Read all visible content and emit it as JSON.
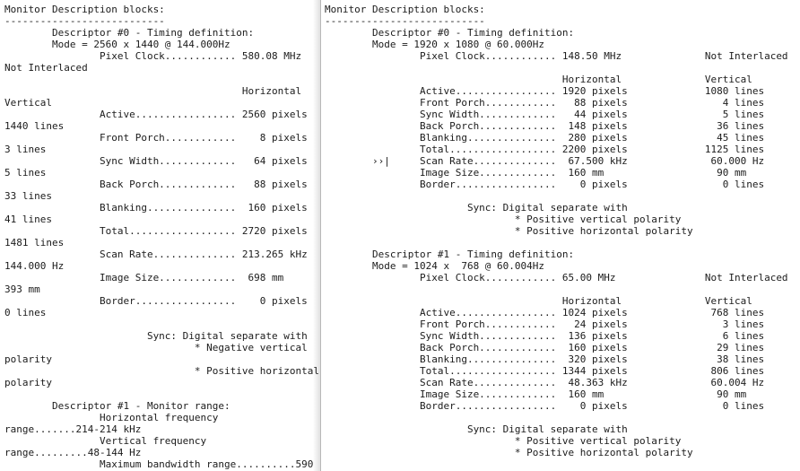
{
  "left_pane": {
    "lines": [
      "Monitor Description blocks:",
      "---------------------------",
      "        Descriptor #0 - Timing definition:",
      "        Mode = 2560 x 1440 @ 144.000Hz",
      "                Pixel Clock............ 580.08 MHz",
      "Not Interlaced",
      "",
      "                                        Horizontal",
      "Vertical",
      "                Active................. 2560 pixels",
      "1440 lines",
      "                Front Porch............    8 pixels",
      "3 lines",
      "                Sync Width.............   64 pixels",
      "5 lines",
      "                Back Porch.............   88 pixels",
      "33 lines",
      "                Blanking...............  160 pixels",
      "41 lines",
      "                Total.................. 2720 pixels",
      "1481 lines",
      "                Scan Rate.............. 213.265 kHz",
      "144.000 Hz",
      "                Image Size.............  698 mm",
      "393 mm",
      "                Border.................    0 pixels",
      "0 lines",
      "",
      "                        Sync: Digital separate with",
      "                                * Negative vertical",
      "polarity",
      "                                * Positive horizontal",
      "polarity",
      "",
      "        Descriptor #1 - Monitor range:",
      "                Horizontal frequency",
      "range.......214-214 kHz",
      "                Vertical frequency",
      "range.........48-144 Hz",
      "                Maximum bandwidth range..........590"
    ]
  },
  "right_pane": {
    "lines": [
      "Monitor Description blocks:",
      "---------------------------",
      "        Descriptor #0 - Timing definition:",
      "        Mode = 1920 x 1080 @ 60.000Hz",
      "                Pixel Clock............ 148.50 MHz              Not Interlaced",
      "",
      "                                        Horizontal              Vertical",
      "                Active................. 1920 pixels             1080 lines",
      "                Front Porch............   88 pixels                4 lines",
      "                Sync Width.............   44 pixels                5 lines",
      "                Back Porch.............  148 pixels               36 lines",
      "                Blanking...............  280 pixels               45 lines",
      "                Total.................. 2200 pixels             1125 lines",
      "        ››|     Scan Rate..............  67.500 kHz              60.000 Hz",
      "                Image Size.............  160 mm                   90 mm",
      "                Border.................    0 pixels                0 lines",
      "",
      "                        Sync: Digital separate with",
      "                                * Positive vertical polarity",
      "                                * Positive horizontal polarity",
      "",
      "        Descriptor #1 - Timing definition:",
      "        Mode = 1024 x  768 @ 60.004Hz",
      "                Pixel Clock............ 65.00 MHz               Not Interlaced",
      "",
      "                                        Horizontal              Vertical",
      "                Active................. 1024 pixels              768 lines",
      "                Front Porch............   24 pixels                3 lines",
      "                Sync Width.............  136 pixels                6 lines",
      "                Back Porch.............  160 pixels               29 lines",
      "                Blanking...............  320 pixels               38 lines",
      "                Total.................. 1344 pixels              806 lines",
      "                Scan Rate..............  48.363 kHz              60.004 Hz",
      "                Image Size.............  160 mm                   90 mm",
      "                Border.................    0 pixels                0 lines",
      "",
      "                        Sync: Digital separate with",
      "                                * Positive vertical polarity",
      "                                * Positive horizontal polarity"
    ]
  }
}
